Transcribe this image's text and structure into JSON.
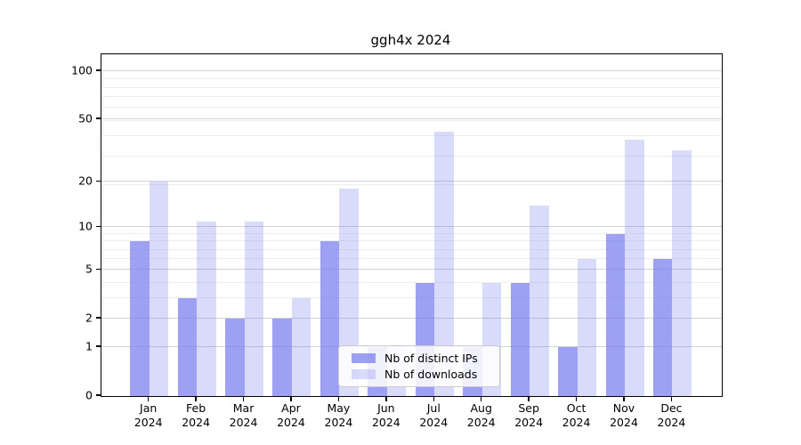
{
  "title": "ggh4x 2024",
  "colors": {
    "base_bar_rgb": "120,124,240",
    "ips_alpha": 0.72,
    "downloads_alpha": 0.28,
    "ips_bar": "#a5a8f2",
    "downloads_bar": "#dbdcf9",
    "grid_major": "#d2d2d2",
    "grid_minor": "#ededed",
    "axis_line": "#000000",
    "legend_border": "#cccccc",
    "title_text": "#000000",
    "tick_text": "#000000"
  },
  "legend": {
    "items": [
      {
        "label": "Nb of distinct IPs",
        "series": "ips"
      },
      {
        "label": "Nb of downloads",
        "series": "downloads"
      }
    ]
  },
  "y_axis": {
    "scale": "log1p",
    "tick_values": [
      0,
      1,
      2,
      5,
      10,
      20,
      50,
      100
    ],
    "tick_labels": [
      "0",
      "1",
      "2",
      "5",
      "10",
      "20",
      "50",
      "100"
    ],
    "minor_values": [
      3,
      4,
      6,
      7,
      8,
      9,
      19,
      29,
      39,
      49,
      59,
      69,
      79,
      89
    ],
    "ymax": 128
  },
  "x_axis": {
    "month_labels": [
      "Jan",
      "Feb",
      "Mar",
      "Apr",
      "May",
      "Jun",
      "Jul",
      "Aug",
      "Sep",
      "Oct",
      "Nov",
      "Dec"
    ],
    "year_label": "2024"
  },
  "chart_data": {
    "type": "bar",
    "title": "ggh4x 2024",
    "categories": [
      "Jan 2024",
      "Feb 2024",
      "Mar 2024",
      "Apr 2024",
      "May 2024",
      "Jun 2024",
      "Jul 2024",
      "Aug 2024",
      "Sep 2024",
      "Oct 2024",
      "Nov 2024",
      "Dec 2024"
    ],
    "series": [
      {
        "name": "Nb of distinct IPs",
        "color": "#a5a8f2",
        "values": [
          8,
          3,
          2,
          2,
          8,
          1,
          4,
          1,
          4,
          1,
          9,
          6
        ]
      },
      {
        "name": "Nb of downloads",
        "color": "#dbdcf9",
        "values": [
          20,
          11,
          11,
          3,
          18,
          1,
          42,
          4,
          14,
          6,
          37,
          32
        ]
      }
    ],
    "xlabel": "",
    "ylabel": "",
    "yscale": "log1p",
    "yticks": [
      0,
      1,
      2,
      5,
      10,
      20,
      50,
      100
    ],
    "ylim": [
      0,
      128
    ],
    "grid": true,
    "legend_position": "lower center"
  }
}
